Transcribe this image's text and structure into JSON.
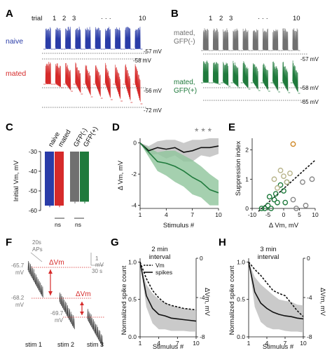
{
  "panels": {
    "A": {
      "label": "A",
      "trial_word": "trial",
      "trial_numbers": [
        "1",
        "2",
        "3",
        "10"
      ],
      "ellipsis": "· · ·",
      "conditions": [
        {
          "name": "naive",
          "color": "#2a3ca8",
          "mv": [
            "-57 mV",
            "-58 mV"
          ]
        },
        {
          "name": "mated",
          "color": "#d62a2a",
          "mv": [
            "-56 mV",
            "-72 mV"
          ]
        }
      ]
    },
    "B": {
      "label": "B",
      "trial_numbers": [
        "1",
        "2",
        "3",
        "10"
      ],
      "ellipsis": "· · ·",
      "conditions": [
        {
          "name": "mated,\nGFP(-)",
          "line1": "mated,",
          "line2": "GFP(-)",
          "color": "#707070",
          "mv": [
            "-57 mV"
          ]
        },
        {
          "name": "mated,\nGFP(+)",
          "line1": "mated,",
          "line2": "GFP(+)",
          "color": "#1f7a3c",
          "mv": [
            "-58 mV",
            "-65 mV"
          ]
        }
      ]
    },
    "C": {
      "label": "C",
      "chart_data": {
        "type": "bar",
        "categories": [
          "naive",
          "mated",
          "GFP(-)",
          "GFP(+)"
        ],
        "values": [
          -57.5,
          -57.5,
          -55.5,
          -55.5
        ],
        "errors": [
          0.8,
          0.8,
          0.9,
          0.9
        ],
        "colors": [
          "#2a3ca8",
          "#d62a2a",
          "#707070",
          "#1f7a3c"
        ],
        "ylabel": "Initial Vm, mV",
        "yticks": [
          "-30",
          "-40",
          "-50",
          "-60"
        ],
        "ylim": [
          -60,
          -30
        ],
        "annotations": [
          "ns",
          "ns"
        ]
      }
    },
    "D": {
      "label": "D",
      "chart_data": {
        "type": "line",
        "x": [
          1,
          2,
          3,
          4,
          5,
          6,
          7,
          8,
          9,
          10
        ],
        "series": [
          {
            "color": "#111111",
            "band": "#bdbdbd",
            "values": [
              0,
              -0.5,
              -0.3,
              -0.4,
              -0.3,
              -0.6,
              -0.5,
              -0.3,
              -0.3,
              -0.2
            ],
            "spread": [
              0,
              0.3,
              0.4,
              0.6,
              0.5,
              0.6,
              0.7,
              0.5,
              0.6,
              0.5
            ]
          },
          {
            "color": "#1f7a3c",
            "band": "#8fc49b",
            "values": [
              0,
              -0.6,
              -1.2,
              -1.3,
              -1.5,
              -1.8,
              -2.2,
              -2.5,
              -3.0,
              -3.2
            ],
            "spread": [
              0,
              0.3,
              0.6,
              0.8,
              1.0,
              1.0,
              1.1,
              1.0,
              1.0,
              0.8
            ]
          }
        ],
        "xlabel": "Stimulus #",
        "ylabel": "Δ Vm, mV",
        "xticks": [
          "1",
          "4",
          "7",
          "10"
        ],
        "yticks": [
          "0",
          "-2",
          "-4"
        ],
        "xlim": [
          1,
          10
        ],
        "ylim": [
          -4.2,
          0.3
        ],
        "annotation": "* * *"
      }
    },
    "E": {
      "label": "E",
      "chart_data": {
        "type": "scatter",
        "series": [
          {
            "color": "#1f7a3c",
            "points": [
              [
                -6,
                0
              ],
              [
                -5,
                0.1
              ],
              [
                -4,
                0
              ],
              [
                -3,
                0.3
              ],
              [
                -2,
                0.2
              ],
              [
                -1,
                0.8
              ],
              [
                0,
                0.6
              ],
              [
                1,
                0.9
              ],
              [
                -7,
                0
              ],
              [
                -2.5,
                0.5
              ],
              [
                0.5,
                0.2
              ],
              [
                -4.5,
                0.4
              ]
            ]
          },
          {
            "color": "#b8b48a",
            "points": [
              [
                -1,
                1.3
              ],
              [
                0,
                1.1
              ],
              [
                2,
                1.2
              ],
              [
                1,
                0.9
              ],
              [
                -2,
                0.7
              ],
              [
                -3,
                1.0
              ]
            ]
          },
          {
            "color": "#888888",
            "points": [
              [
                6,
                0.9
              ],
              [
                9,
                1.0
              ],
              [
                4,
                0
              ],
              [
                7,
                0.1
              ],
              [
                3,
                0.3
              ]
            ]
          },
          {
            "color": "#d08a2a",
            "points": [
              [
                3,
                2.2
              ]
            ]
          }
        ],
        "fit": {
          "x": [
            -8,
            10
          ],
          "y": [
            -0.1,
            1.65
          ]
        },
        "xlabel": "Δ Vm, mV",
        "ylabel": "Suppression index",
        "xticks": [
          "-10",
          "-5",
          "0",
          "5",
          "10"
        ],
        "yticks": [
          "0",
          "1",
          "2"
        ],
        "xlim": [
          -10,
          10
        ],
        "ylim": [
          0,
          2.4
        ]
      }
    },
    "F": {
      "label": "F",
      "scale_time": "20s\nAPs",
      "scale_time_a": "20s",
      "scale_time_b": "APs",
      "scale_mv": "1\nmV",
      "scale_mv_a": "1",
      "scale_mv_b": "mV",
      "scale_s": "30 s",
      "vm_labels": [
        "-65.7\nmV",
        "-68.2\nmV",
        "-69.7\nmV"
      ],
      "vm1a": "-65.7",
      "vm1b": "mV",
      "vm2a": "-68.2",
      "vm2b": "mV",
      "vm3a": "-69.7",
      "vm3b": "mV",
      "delta_label": "ΔVm",
      "stim_labels": [
        "stim 1",
        "stim 2",
        "stim 3"
      ]
    },
    "G": {
      "label": "G",
      "chart_data": {
        "type": "line",
        "title": "2 min\ninterval",
        "title_a": "2 min",
        "title_b": "interval",
        "x": [
          1,
          2,
          3,
          4,
          5,
          6,
          7,
          8,
          9,
          10
        ],
        "series": [
          {
            "name": "Vm",
            "dashed": true,
            "values": [
              1.0,
              0.78,
              0.62,
              0.52,
              0.45,
              0.42,
              0.4,
              0.38,
              0.37,
              0.36
            ]
          },
          {
            "name": "spikes",
            "dashed": false,
            "values": [
              1.0,
              0.55,
              0.38,
              0.3,
              0.28,
              0.25,
              0.24,
              0.23,
              0.22,
              0.21
            ],
            "spread": [
              0,
              0.15,
              0.2,
              0.2,
              0.18,
              0.17,
              0.16,
              0.15,
              0.15,
              0.14
            ]
          }
        ],
        "xlabel": "Stimulus #",
        "ylabel": "Normalized spike count",
        "ylabel_right": "ΔVm, mV",
        "xticks": [
          "1",
          "4",
          "7",
          "10"
        ],
        "yticks": [
          "1.0",
          "0.5",
          "0.0"
        ],
        "yticks_right": [
          "0",
          "-4",
          "-8"
        ],
        "ylim": [
          0,
          1.05
        ]
      }
    },
    "H": {
      "label": "H",
      "chart_data": {
        "type": "line",
        "title": "3 min\ninterval",
        "title_a": "3 min",
        "title_b": "interval",
        "x": [
          1,
          2,
          3,
          4,
          5,
          6,
          7,
          8,
          9,
          10
        ],
        "series": [
          {
            "dashed": true,
            "values": [
              1.0,
              0.9,
              0.82,
              0.72,
              0.62,
              0.58,
              0.55,
              0.45,
              0.35,
              0.27
            ]
          },
          {
            "dashed": false,
            "values": [
              1.0,
              0.6,
              0.45,
              0.38,
              0.33,
              0.3,
              0.28,
              0.27,
              0.25,
              0.24
            ],
            "spread": [
              0,
              0.2,
              0.25,
              0.25,
              0.23,
              0.2,
              0.2,
              0.2,
              0.18,
              0.18
            ]
          }
        ],
        "xlabel": "Stimulus #",
        "ylabel": "Normalized spike count",
        "ylabel_right": "ΔVm, mV",
        "xticks": [
          "1",
          "4",
          "7",
          "10"
        ],
        "yticks": [
          "1.0",
          "0.5",
          "0.0"
        ],
        "yticks_right": [
          "0",
          "-4",
          "-8"
        ],
        "ylim": [
          0,
          1.05
        ]
      }
    }
  }
}
